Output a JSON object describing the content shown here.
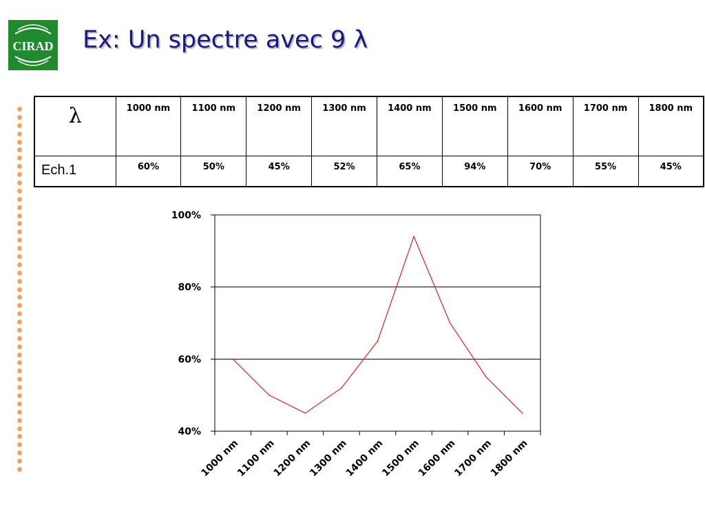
{
  "slide": {
    "title": "Ex: Un spectre avec 9 λ",
    "logo_text": "CIRAD",
    "bullet_color": "#f5a25d",
    "title_color": "#1a1a7a",
    "logo_color": "#1f8a2e"
  },
  "table": {
    "corner_symbol": "λ",
    "headers": [
      "1000 nm",
      "1100 nm",
      "1200 nm",
      "1300 nm",
      "1400 nm",
      "1500 nm",
      "1600 nm",
      "1700 nm",
      "1800 nm"
    ],
    "rows": [
      {
        "label": "Ech.1",
        "values": [
          "60%",
          "50%",
          "45%",
          "52%",
          "65%",
          "94%",
          "70%",
          "55%",
          "45%"
        ]
      }
    ]
  },
  "chart_data": {
    "type": "line",
    "categories": [
      "1000 nm",
      "1100 nm",
      "1200 nm",
      "1300 nm",
      "1400 nm",
      "1500 nm",
      "1600 nm",
      "1700 nm",
      "1800 nm"
    ],
    "series": [
      {
        "values": [
          0.6,
          0.5,
          0.45,
          0.52,
          0.65,
          0.94,
          0.7,
          0.55,
          0.45
        ],
        "color": "#e02020"
      }
    ],
    "ylim": [
      0.4,
      1.0
    ],
    "yticks": [
      0.4,
      0.6,
      0.8,
      1.0
    ],
    "ytick_labels": [
      "40%",
      "60%",
      "80%",
      "100%"
    ],
    "grid": true,
    "legend": "none"
  }
}
